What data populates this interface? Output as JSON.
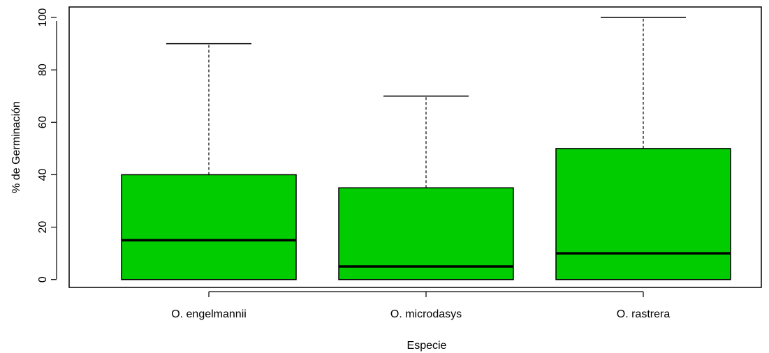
{
  "chart_data": {
    "type": "box",
    "xlabel": "Especie",
    "ylabel": "% de Germinación",
    "ylim": [
      -3,
      104
    ],
    "yticks": [
      "0",
      "20",
      "40",
      "60",
      "80",
      "100"
    ],
    "grid": false,
    "box_color": "#00cc00",
    "categories": [
      "O. engelmannii",
      "O. microdasys",
      "O. rastrera"
    ],
    "boxes": [
      {
        "min": 0,
        "q1": 0,
        "median": 15,
        "q3": 40,
        "max": 90
      },
      {
        "min": 0,
        "q1": 0,
        "median": 5,
        "q3": 35,
        "max": 70
      },
      {
        "min": 0,
        "q1": 0,
        "median": 10,
        "q3": 50,
        "max": 100
      }
    ]
  }
}
